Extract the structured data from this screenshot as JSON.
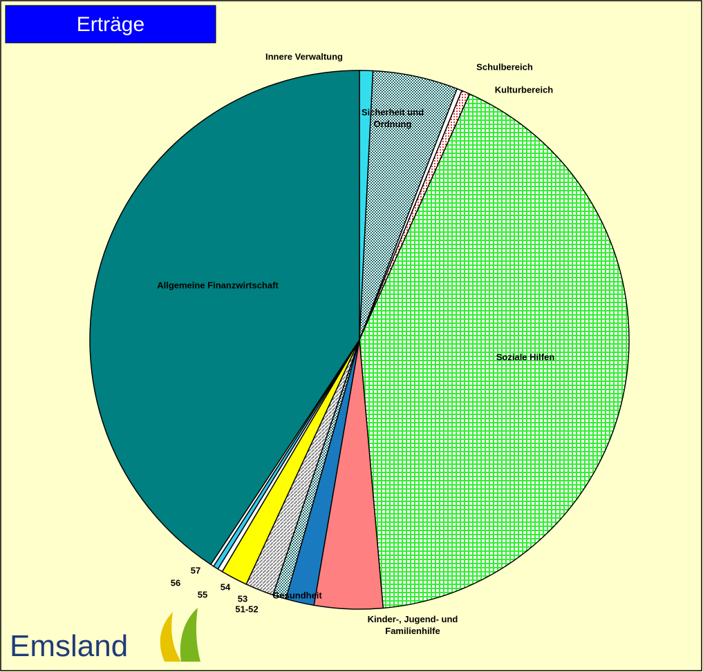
{
  "chart_data": {
    "type": "pie",
    "title": "Erträge",
    "logo": "Emsland",
    "categories": [
      "Innere Verwaltung",
      "Sicherheit und Ordnung",
      "Schulbereich",
      "Kulturbereich",
      "Soziale Hilfen",
      "Kinder-, Jugend- und Familienhilfe",
      "Gesundheit",
      "51-52",
      "53",
      "54",
      "55",
      "56",
      "57",
      "Allgemeine Finanzwirtschaft"
    ],
    "values": [
      0.8,
      5.1,
      0.3,
      0.5,
      41.9,
      4.1,
      1.7,
      0.8,
      1.7,
      1.6,
      0.3,
      0.3,
      0.2,
      40.7
    ],
    "colors": [
      "#33ddee",
      "#2a8a8a",
      "#ffffff",
      "#ffffff",
      "#33dd33",
      "#ff8080",
      "#1a7abf",
      "#3a5a8a",
      "#bbbbbb",
      "#ffff00",
      "#ffffff",
      "#33ccee",
      "#ffffff",
      "#008080"
    ],
    "patterns": [
      null,
      "checker",
      null,
      "dots",
      "grid",
      null,
      null,
      "checker",
      "diagonal",
      null,
      null,
      null,
      null,
      null
    ]
  }
}
